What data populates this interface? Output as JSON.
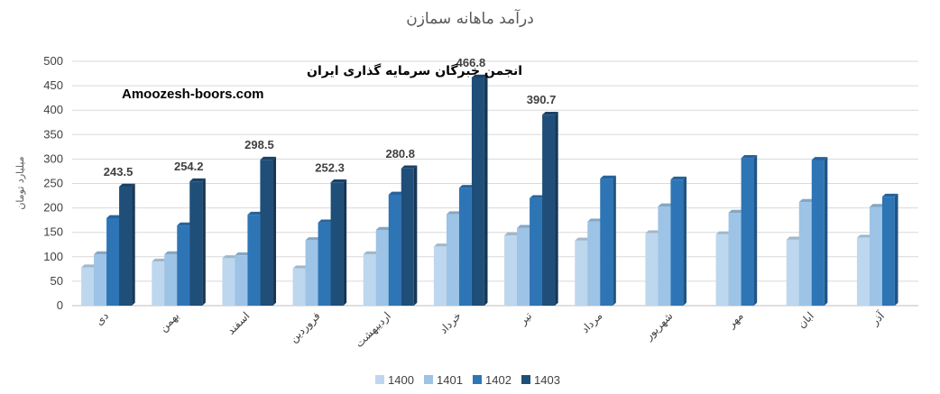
{
  "watermark": {
    "line1": "انجمن خبرگان سرمایه گذاری ایران",
    "line2": "Amoozesh-boors.com"
  },
  "chart_data": {
    "type": "bar",
    "title": "درآمد ماهانه سمازن",
    "xlabel": "",
    "ylabel": "میلیارد تومان",
    "ylim": [
      0,
      500
    ],
    "yticks": [
      0,
      50,
      100,
      150,
      200,
      250,
      300,
      350,
      400,
      450,
      500
    ],
    "grid": true,
    "legend": "bottom",
    "categories": [
      "دی",
      "بهمن",
      "اسفند",
      "فروردین",
      "اردیبهشت",
      "خرداد",
      "تیر",
      "مرداد",
      "شهریور",
      "مهر",
      "ابان",
      "آذر"
    ],
    "series": [
      {
        "name": "1400",
        "color": "#bdd7ee",
        "values": [
          78,
          90,
          97,
          76,
          105,
          121,
          144,
          133,
          148,
          146,
          135,
          139
        ]
      },
      {
        "name": "1401",
        "color": "#9dc3e6",
        "values": [
          105,
          105,
          103,
          134,
          155,
          187,
          159,
          172,
          203,
          190,
          212,
          202
        ]
      },
      {
        "name": "1402",
        "color": "#2e75b6",
        "values": [
          179,
          164,
          186,
          170,
          227,
          241,
          220,
          260,
          258,
          302,
          298,
          223
        ]
      },
      {
        "name": "1403",
        "color": "#1f4e79",
        "values": [
          243.5,
          254.2,
          298.5,
          252.3,
          280.8,
          466.8,
          390.7,
          null,
          null,
          null,
          null,
          null
        ]
      }
    ],
    "data_labels": [
      "243.5",
      "254.2",
      "298.5",
      "252.3",
      "280.8",
      "466.8",
      "390.7"
    ]
  }
}
